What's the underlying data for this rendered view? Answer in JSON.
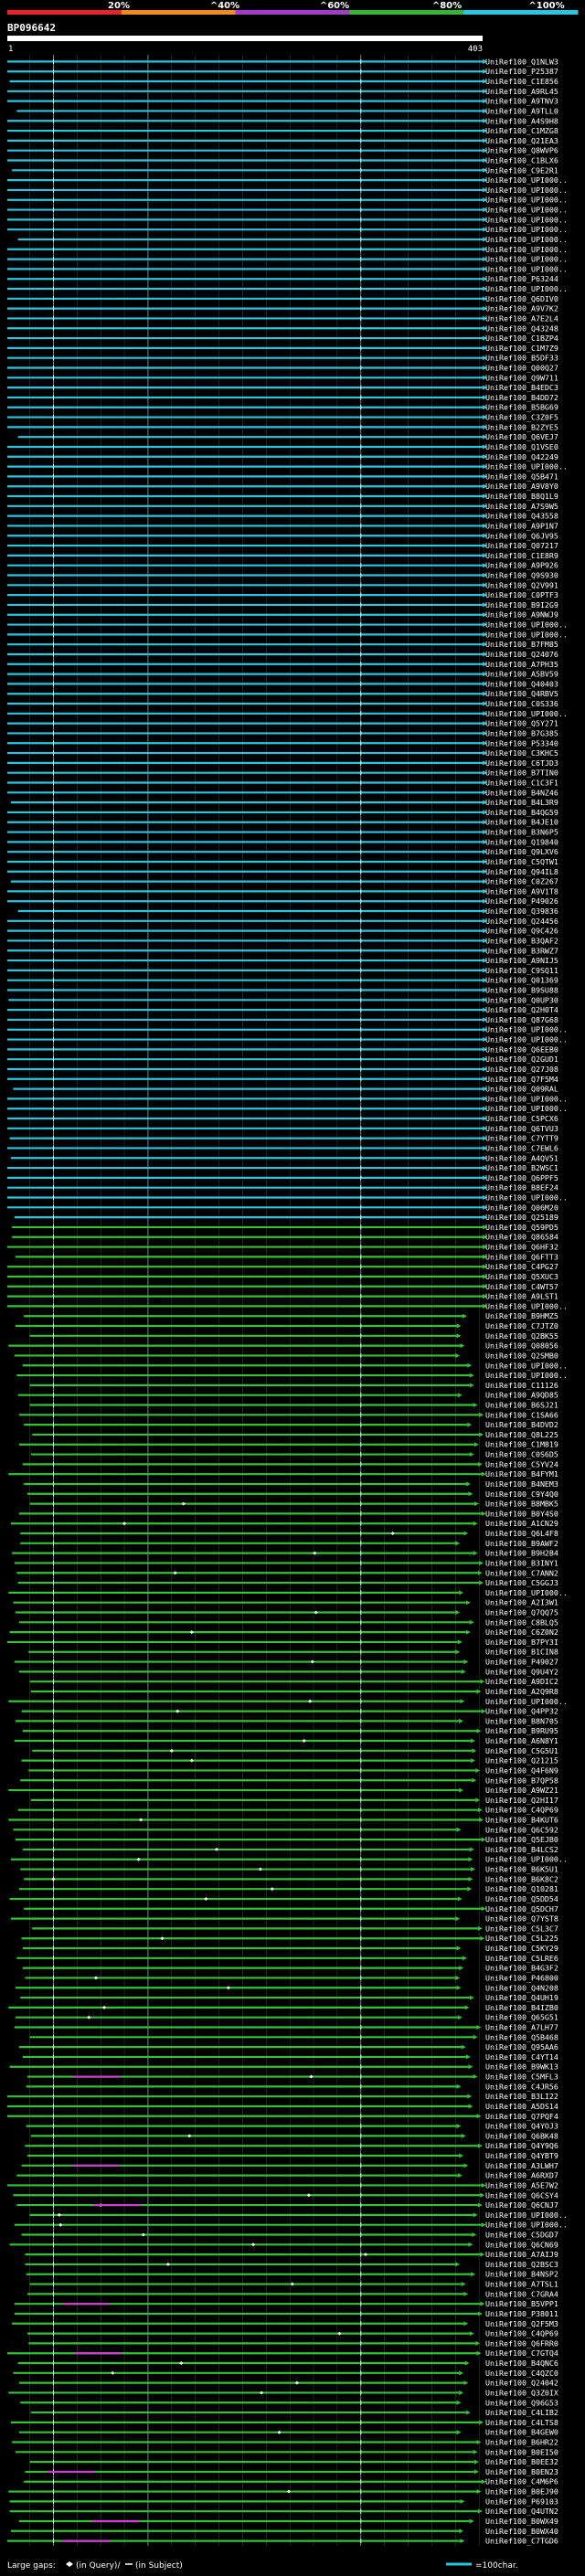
{
  "query": {
    "name": "BP096642",
    "start_label": "1",
    "end_label": "403"
  },
  "legend": {
    "large_gaps_prefix": "Large gaps:",
    "in_query_text": "(in Query)/",
    "in_subject_text": "(in Subject)",
    "scale_text": "=100char."
  },
  "colors": {
    "background": "#000000",
    "cyan": "#29c6e0",
    "green": "#33c233",
    "magenta": "#d23cd2",
    "query_bar": "#ffffff",
    "guide": "#444444"
  },
  "chart_data": {
    "type": "alignment-overview",
    "x_axis": {
      "min": 1,
      "max": 403,
      "label_start": "1",
      "label_end": "403"
    },
    "identity_scale": {
      "ticks": [
        "20%",
        "^40%",
        "^60%",
        "^80%",
        "^100%"
      ],
      "colors": [
        "#e8232a",
        "#f28c1e",
        "#a23cc8",
        "#35b435",
        "#29c6e0"
      ]
    },
    "hits": [
      "UniRef100_Q1NLW3",
      "UniRef100_P25387",
      "UniRef100_C1E856",
      "UniRef100_A9RL45",
      "UniRef100_A9TNV3",
      "UniRef100_A9TLL0",
      "UniRef100_A4S9H8",
      "UniRef100_C1MZG8",
      "UniRef100_Q21EA3",
      "UniRef100_Q8WVP6",
      "UniRef100_C1BLX6",
      "UniRef100_C9E2R1",
      "UniRef100_UPI000..",
      "UniRef100_UPI000..",
      "UniRef100_UPI000..",
      "UniRef100_UPI000..",
      "UniRef100_UPI000..",
      "UniRef100_UPI000..",
      "UniRef100_UPI000..",
      "UniRef100_UPI000..",
      "UniRef100_UPI000..",
      "UniRef100_UPI000..",
      "UniRef100_P63244",
      "UniRef100_UPI000..",
      "UniRef100_Q6DIV0",
      "UniRef100_A9V7K2",
      "UniRef100_A7E2L4",
      "UniRef100_Q43248",
      "UniRef100_C1BZP4",
      "UniRef100_C1M7Z9",
      "UniRef100_B5DF33",
      "UniRef100_Q00Q27",
      "UniRef100_Q9W711",
      "UniRef100_B4EDC3",
      "UniRef100_B4DD72",
      "UniRef100_B5BG69",
      "UniRef100_C3Z0F5",
      "UniRef100_B2ZYE5",
      "UniRef100_Q6VEJ7",
      "UniRef100_Q1VSE0",
      "UniRef100_Q42249",
      "UniRef100_UPI000..",
      "UniRef100_Q5B471",
      "UniRef100_A9V8Y0",
      "UniRef100_B8Q1L9",
      "UniRef100_A7S9W5",
      "UniRef100_Q43558",
      "UniRef100_A9P1N7",
      "UniRef100_Q6JV95",
      "UniRef100_Q07217",
      "UniRef100_C1E8R9",
      "UniRef100_A9P926",
      "UniRef100_Q9S930",
      "UniRef100_Q2V991",
      "UniRef100_C0PTF3",
      "UniRef100_B9I2G9",
      "UniRef100_A9NWJ9",
      "UniRef100_UPI000..",
      "UniRef100_UPI000..",
      "UniRef100_B7FM85",
      "UniRef100_Q24076",
      "UniRef100_A7PH35",
      "UniRef100_A5BV59",
      "UniRef100_Q40403",
      "UniRef100_Q4RBV5",
      "UniRef100_C0S336",
      "UniRef100_UPI000..",
      "UniRef100_Q5Y271",
      "UniRef100_B7G385",
      "UniRef100_P53340",
      "UniRef100_C3KHC5",
      "UniRef100_C6TJD3",
      "UniRef100_B7TIN0",
      "UniRef100_C1C3F1",
      "UniRef100_B4NZ46",
      "UniRef100_B4L3R9",
      "UniRef100_B4QG59",
      "UniRef100_B4JE10",
      "UniRef100_B3N6P5",
      "UniRef100_Q19840",
      "UniRef100_Q9LXV6",
      "UniRef100_C5QTW1",
      "UniRef100_Q94IL8",
      "UniRef100_C0Z267",
      "UniRef100_A9V1T8",
      "UniRef100_P49026",
      "UniRef100_Q39836",
      "UniRef100_Q24456",
      "UniRef100_Q9C426",
      "UniRef100_B3QAF2",
      "UniRef100_B3RWZ7",
      "UniRef100_A9NIJ5",
      "UniRef100_C9SQ11",
      "UniRef100_Q01369",
      "UniRef100_B9SU88",
      "UniRef100_Q0UP30",
      "UniRef100_Q2H0T4",
      "UniRef100_Q87G68",
      "UniRef100_UPI000..",
      "UniRef100_UPI000..",
      "UniRef100_Q6EEB0",
      "UniRef100_Q2GUD1",
      "UniRef100_Q27J08",
      "UniRef100_Q7F5M4",
      "UniRef100_Q09RAL",
      "UniRef100_UPI000..",
      "UniRef100_UPI000..",
      "UniRef100_C5PCX6",
      "UniRef100_Q6TVU3",
      "UniRef100_C7YTT9",
      "UniRef100_C7EWL6",
      "UniRef100_A4QV51",
      "UniRef100_B2WSC1",
      "UniRef100_Q6PPF5",
      "UniRef100_B8EF24",
      "UniRef100_UPI000..",
      "UniRef100_Q06M20",
      "UniRef100_Q25189",
      "UniRef100_Q59PD5",
      "UniRef100_Q86584",
      "UniRef100_Q6HF32",
      "UniRef100_Q6FTT3",
      "UniRef100_C4PG27",
      "UniRef100_Q5XUC3",
      "UniRef100_C4WT57",
      "UniRef100_A9LST1",
      "UniRef100_UPI000..",
      "UniRef100_B9HMZ5",
      "UniRef100_C7JTZ0",
      "UniRef100_Q2BK55",
      "UniRef100_Q08056",
      "UniRef100_Q2SMB0",
      "UniRef100_UPI000..",
      "UniRef100_UPI000..",
      "UniRef100_C11126",
      "UniRef100_A9QD85",
      "UniRef100_B6SJ21",
      "UniRef100_C1SA66",
      "UniRef100_B4DVD2",
      "UniRef100_Q8L225",
      "UniRef100_C1M819",
      "UniRef100_C0S6D5",
      "UniRef100_C5YV24",
      "UniRef100_B4FYM1",
      "UniRef100_B4NEM3",
      "UniRef100_C9Y4Q0",
      "UniRef100_B8MBK5",
      "UniRef100_B0Y4S0",
      "UniRef100_A1CN29",
      "UniRef100_Q6L4F8",
      "UniRef100_B9AWF2",
      "UniRef100_B9H2B4",
      "UniRef100_B3INY1",
      "UniRef100_C7ANN2",
      "UniRef100_C5GGJ3",
      "UniRef100_UPI000..",
      "UniRef100_A2I3W1",
      "UniRef100_Q7QQ75",
      "UniRef100_C8BLQ5",
      "UniRef100_C6Z0N2",
      "UniRef100_B7PY3I",
      "UniRef100_B1CIN8",
      "UniRef100_P49027",
      "UniRef100_Q9U4Y2",
      "UniRef100_A9DIC2",
      "UniRef100_A2Q9R8",
      "UniRef100_UPI000..",
      "UniRef100_Q4PP32",
      "UniRef100_B8N705",
      "UniRef100_B9RU95",
      "UniRef100_A6N8Y1",
      "UniRef100_C5G5U1",
      "UniRef100_Q21215",
      "UniRef100_Q4F6N9",
      "UniRef100_B7QP58",
      "UniRef100_A9WZ21",
      "UniRef100_Q2HI17",
      "UniRef100_C4QP69",
      "UniRef100_B4KUT6",
      "UniRef100_Q6C592",
      "UniRef100_Q5EJB0",
      "UniRef100_B4LCS2",
      "UniRef100_UPI000..",
      "UniRef100_B6K5U1",
      "UniRef100_B6K8C2",
      "UniRef100_Q10281",
      "UniRef100_Q5DD54",
      "UniRef100_Q5DCH7",
      "UniRef100_Q7YST8",
      "UniRef100_C5L3C7",
      "UniRef100_C5L225",
      "UniRef100_C5KY29",
      "UniRef100_C5LRE6",
      "UniRef100_B4G3F2",
      "UniRef100_P46800",
      "UniRef100_Q4N208",
      "UniRef100_Q4UH19",
      "UniRef100_B4IZB0",
      "UniRef100_Q65G51",
      "UniRef100_A7LH77",
      "UniRef100_Q5B468",
      "UniRef100_Q95AA6",
      "UniRef100_C4YT14",
      "UniRef100_B9WK13",
      "UniRef100_C5MFL3",
      "UniRef100_C4JR56",
      "UniRef100_B3LI22",
      "UniRef100_A5DS14",
      "UniRef100_Q7PQF4",
      "UniRef100_Q4YOJ3",
      "UniRef100_Q6BK48",
      "UniRef100_Q4Y9Q6",
      "UniRef100_Q4YBT9",
      "UniRef100_A3LWH7",
      "UniRef100_A6RXD7",
      "UniRef100_A5E7W2",
      "UniRef100_Q6CSY4",
      "UniRef100_Q6CNJ7",
      "UniRef100_UPI000..",
      "UniRef100_UPI000..",
      "UniRef100_C5DGD7",
      "UniRef100_Q6CN69",
      "UniRef100_A7AIJ9",
      "UniRef100_Q2BSC3",
      "UniRef100_B4NSP2",
      "UniRef100_A7TSL1",
      "UniRef100_C7GRA4",
      "UniRef100_B5VPP1",
      "UniRef100_P38011",
      "UniRef100_Q2F5M3",
      "UniRef100_C4QP69",
      "UniRef100_Q6FRR0",
      "UniRef100_C7GTQ4",
      "UniRef100_B4QNC6",
      "UniRef100_C4QZC0",
      "UniRef100_Q24042",
      "UniRef100_Q3Z0IX",
      "UniRef100_Q96G53",
      "UniRef100_C4LIB2",
      "UniRef100_C4LTS8",
      "UniRef100_B4GEW0",
      "UniRef100_B6HR22",
      "UniRef100_B0EI50",
      "UniRef100_B0EE32",
      "UniRef100_B0EN23",
      "UniRef100_C4M6P6",
      "UniRef100_B0EJ90",
      "UniRef100_P69103",
      "UniRef100_Q4UTN2",
      "UniRef100_B0WX49",
      "UniRef100_B0WX40",
      "UniRef100_C7TGD6"
    ]
  }
}
